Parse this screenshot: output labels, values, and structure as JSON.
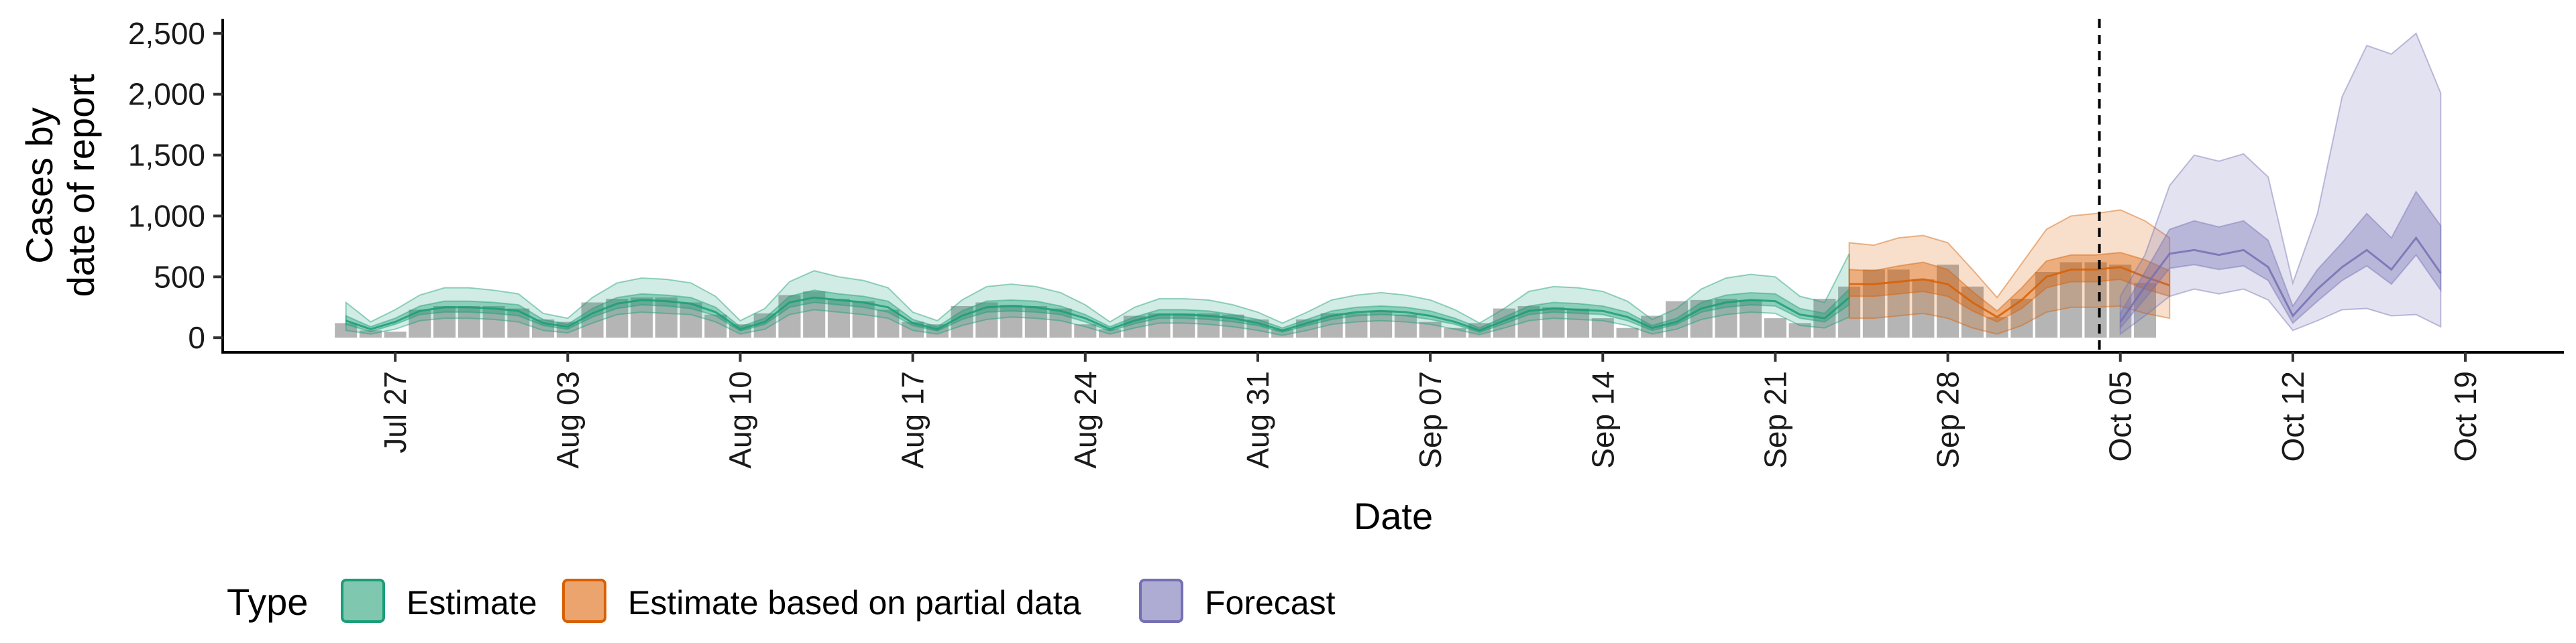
{
  "chart_data": {
    "type": "area",
    "xlabel": "Date",
    "ylabel_lines": [
      "Cases by",
      "date of report"
    ],
    "ylim": [
      -120,
      2620
    ],
    "xlim": [
      "2020-07-20",
      "2020-10-23"
    ],
    "yticks": [
      0,
      500,
      1000,
      1500,
      2000,
      2500
    ],
    "ytick_labels": [
      "0",
      "500",
      "1,000",
      "1,500",
      "2,000",
      "2,500"
    ],
    "xticks": [
      "2020-07-27",
      "2020-08-03",
      "2020-08-10",
      "2020-08-17",
      "2020-08-24",
      "2020-08-31",
      "2020-09-07",
      "2020-09-14",
      "2020-09-21",
      "2020-09-28",
      "2020-10-05",
      "2020-10-12",
      "2020-10-19"
    ],
    "xtick_labels": [
      "Jul 27",
      "Aug 03",
      "Aug 10",
      "Aug 17",
      "Aug 24",
      "Aug 31",
      "Sep 07",
      "Sep 14",
      "Sep 21",
      "Sep 28",
      "Oct 05",
      "Oct 12",
      "Oct 19"
    ],
    "forecast_date": "2020-10-04",
    "grid": false,
    "legend": {
      "title": "Type",
      "position": "bottom-left",
      "entries": [
        {
          "label": "Estimate",
          "fill": "#7fc7ae",
          "stroke": "#1b9e77"
        },
        {
          "label": "Estimate based on partial data",
          "fill": "#eba46e",
          "stroke": "#d95f02"
        },
        {
          "label": "Forecast",
          "fill": "#aeacd2",
          "stroke": "#7570b3"
        }
      ]
    },
    "colors": {
      "estimate": "#1b9e77",
      "partial": "#d95f02",
      "forecast": "#7570b3",
      "bars": "#b5b5b5"
    },
    "observed": {
      "start": "2020-07-25",
      "values": [
        120,
        60,
        50,
        230,
        260,
        260,
        260,
        240,
        150,
        130,
        290,
        320,
        330,
        330,
        290,
        190,
        110,
        200,
        350,
        380,
        320,
        300,
        230,
        130,
        110,
        260,
        290,
        270,
        260,
        240,
        110,
        70,
        180,
        200,
        200,
        200,
        190,
        150,
        70,
        150,
        200,
        200,
        220,
        190,
        130,
        80,
        120,
        240,
        260,
        250,
        240,
        160,
        80,
        180,
        300,
        310,
        320,
        310,
        160,
        120,
        320,
        420,
        560,
        560,
        480,
        600,
        420,
        170,
        320,
        540,
        620,
        620,
        600,
        450
      ]
    },
    "series": [
      {
        "name": "Estimate",
        "start": "2020-07-25",
        "median": [
          140,
          70,
          130,
          220,
          250,
          250,
          240,
          220,
          120,
          90,
          200,
          280,
          310,
          300,
          280,
          210,
          70,
          130,
          290,
          330,
          310,
          290,
          250,
          120,
          70,
          180,
          250,
          260,
          250,
          220,
          160,
          70,
          140,
          190,
          190,
          180,
          160,
          120,
          60,
          120,
          180,
          210,
          220,
          210,
          180,
          130,
          60,
          140,
          220,
          240,
          230,
          220,
          170,
          80,
          130,
          240,
          290,
          310,
          300,
          190,
          160,
          330
        ],
        "lo50": [
          110,
          50,
          110,
          190,
          210,
          210,
          200,
          180,
          100,
          70,
          170,
          240,
          270,
          260,
          240,
          180,
          55,
          110,
          250,
          290,
          270,
          250,
          210,
          100,
          55,
          150,
          210,
          220,
          210,
          190,
          130,
          55,
          115,
          160,
          160,
          150,
          130,
          100,
          45,
          100,
          150,
          180,
          190,
          180,
          150,
          110,
          45,
          115,
          190,
          210,
          200,
          190,
          140,
          60,
          110,
          210,
          250,
          270,
          260,
          160,
          130,
          270
        ],
        "hi50": [
          180,
          90,
          160,
          260,
          300,
          300,
          290,
          270,
          150,
          110,
          240,
          330,
          360,
          350,
          330,
          250,
          90,
          160,
          340,
          390,
          360,
          340,
          300,
          150,
          90,
          220,
          300,
          310,
          300,
          260,
          190,
          90,
          170,
          230,
          230,
          220,
          190,
          150,
          80,
          150,
          220,
          250,
          260,
          250,
          220,
          160,
          80,
          170,
          260,
          290,
          280,
          260,
          210,
          100,
          160,
          290,
          350,
          370,
          360,
          240,
          200,
          400
        ],
        "lo90": [
          60,
          30,
          70,
          140,
          160,
          160,
          150,
          130,
          60,
          40,
          120,
          190,
          210,
          200,
          190,
          130,
          30,
          70,
          190,
          230,
          210,
          190,
          160,
          60,
          30,
          100,
          150,
          170,
          160,
          140,
          90,
          30,
          80,
          120,
          120,
          110,
          90,
          60,
          20,
          60,
          110,
          130,
          140,
          130,
          110,
          70,
          25,
          80,
          140,
          160,
          150,
          140,
          100,
          30,
          70,
          150,
          190,
          210,
          200,
          100,
          80,
          170
        ],
        "hi90": [
          290,
          130,
          230,
          350,
          410,
          410,
          390,
          360,
          200,
          160,
          330,
          450,
          490,
          480,
          450,
          340,
          140,
          240,
          460,
          550,
          500,
          470,
          410,
          210,
          140,
          310,
          420,
          440,
          420,
          370,
          270,
          130,
          250,
          320,
          320,
          310,
          270,
          210,
          120,
          210,
          310,
          350,
          370,
          350,
          310,
          230,
          120,
          240,
          380,
          420,
          410,
          380,
          300,
          150,
          240,
          400,
          490,
          520,
          500,
          340,
          290,
          690
        ]
      },
      {
        "name": "Estimate based on partial data",
        "start": "2020-09-24",
        "median": [
          440,
          440,
          460,
          480,
          440,
          290,
          170,
          310,
          500,
          560,
          560,
          580,
          500,
          430
        ],
        "lo50": [
          340,
          340,
          360,
          380,
          340,
          220,
          130,
          240,
          410,
          460,
          460,
          480,
          400,
          340
        ],
        "hi50": [
          560,
          550,
          590,
          620,
          560,
          380,
          220,
          410,
          630,
          680,
          680,
          700,
          640,
          550
        ],
        "lo90": [
          160,
          160,
          180,
          200,
          160,
          80,
          30,
          100,
          210,
          250,
          250,
          260,
          200,
          160
        ],
        "hi90": [
          780,
          760,
          820,
          840,
          780,
          560,
          330,
          610,
          890,
          1000,
          1020,
          1050,
          960,
          820
        ]
      },
      {
        "name": "Forecast",
        "start": "2020-10-05",
        "median": [
          130,
          420,
          690,
          720,
          680,
          720,
          580,
          180,
          400,
          580,
          720,
          560,
          820,
          530
        ],
        "lo50": [
          80,
          320,
          570,
          600,
          560,
          590,
          470,
          120,
          300,
          470,
          590,
          440,
          680,
          390
        ],
        "hi50": [
          200,
          540,
          890,
          960,
          910,
          960,
          800,
          260,
          560,
          780,
          1020,
          820,
          1200,
          920
        ],
        "lo90": [
          30,
          180,
          340,
          400,
          360,
          400,
          310,
          60,
          140,
          230,
          240,
          180,
          190,
          90
        ],
        "hi90": [
          340,
          680,
          1250,
          1500,
          1450,
          1510,
          1320,
          450,
          1020,
          1980,
          2400,
          2330,
          2500,
          2010
        ]
      }
    ]
  }
}
